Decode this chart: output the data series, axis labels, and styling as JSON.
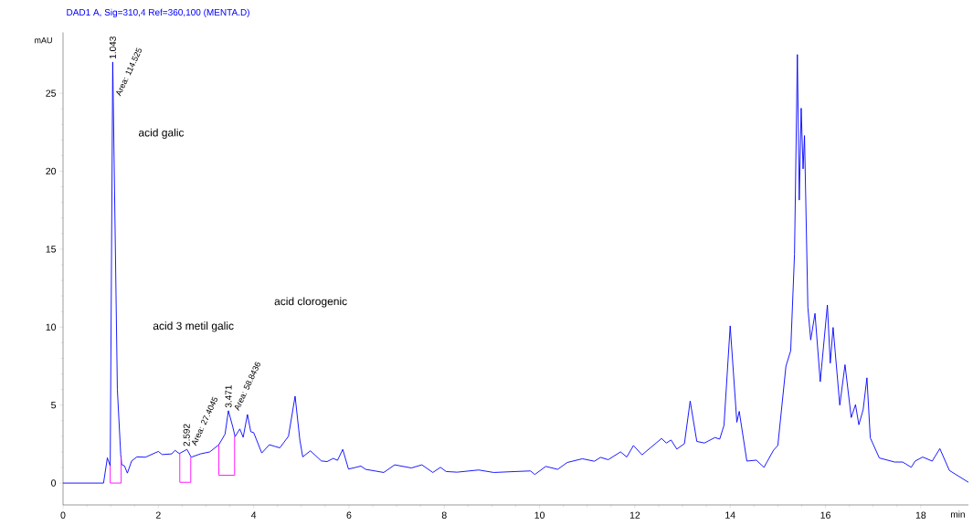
{
  "chart_data": {
    "type": "line",
    "title": "DAD1 A, Sig=310,4 Ref=360,100 (MENTA.D)",
    "xlabel": "min",
    "ylabel": "mAU",
    "xlim": [
      0,
      19.0
    ],
    "ylim": [
      -1.4,
      28.9
    ],
    "xticks": [
      0,
      2,
      4,
      6,
      8,
      10,
      12,
      14,
      16,
      18
    ],
    "yticks": [
      0,
      5,
      10,
      15,
      20,
      25
    ],
    "series": [
      {
        "color": "#0000ff",
        "x": [
          0,
          0.85,
          0.93,
          0.99,
          1.043,
          1.14,
          1.21,
          1.23,
          1.29,
          1.35,
          1.44,
          1.55,
          1.73,
          2.0,
          2.08,
          2.28,
          2.35,
          2.44,
          2.6,
          2.69,
          2.88,
          3.08,
          3.27,
          3.4,
          3.47,
          3.56,
          3.61,
          3.71,
          3.78,
          3.87,
          3.94,
          4.0,
          4.17,
          4.33,
          4.44,
          4.55,
          4.73,
          4.87,
          4.97,
          5.03,
          5.19,
          5.42,
          5.54,
          5.67,
          5.76,
          5.87,
          5.99,
          6.12,
          6.25,
          6.35,
          6.73,
          6.96,
          7.31,
          7.53,
          7.76,
          7.92,
          8.04,
          8.27,
          8.72,
          9.04,
          9.49,
          9.81,
          9.9,
          10.13,
          10.38,
          10.58,
          10.9,
          11.15,
          11.28,
          11.44,
          11.7,
          11.83,
          11.97,
          12.15,
          12.56,
          12.66,
          12.76,
          12.88,
          13.04,
          13.16,
          13.3,
          13.46,
          13.68,
          13.78,
          13.87,
          14.0,
          14.14,
          14.19,
          14.35,
          14.55,
          14.71,
          14.91,
          15.0,
          15.17,
          15.27,
          15.35,
          15.41,
          15.45,
          15.49,
          15.53,
          15.56,
          15.63,
          15.69,
          15.78,
          15.89,
          16.04,
          16.1,
          16.16,
          16.3,
          16.41,
          16.54,
          16.63,
          16.7,
          16.79,
          16.87,
          16.94,
          17.13,
          17.45,
          17.62,
          17.8,
          17.88,
          18.04,
          18.24,
          18.4,
          18.6,
          19.0
        ],
        "values": [
          0,
          0,
          1.62,
          1.1,
          27.0,
          6.0,
          1.85,
          1.19,
          1.1,
          0.64,
          1.42,
          1.68,
          1.66,
          2.03,
          1.83,
          1.87,
          2.1,
          1.89,
          2.16,
          1.66,
          1.87,
          2.0,
          2.46,
          3.14,
          4.64,
          3.63,
          2.98,
          3.47,
          2.94,
          4.4,
          3.29,
          3.24,
          1.93,
          2.46,
          2.36,
          2.26,
          3.0,
          5.57,
          2.75,
          1.68,
          2.07,
          1.42,
          1.38,
          1.58,
          1.46,
          2.16,
          0.9,
          0.99,
          1.09,
          0.88,
          0.68,
          1.17,
          0.97,
          1.17,
          0.68,
          1.01,
          0.74,
          0.7,
          0.84,
          0.68,
          0.74,
          0.78,
          0.55,
          1.07,
          0.88,
          1.32,
          1.56,
          1.4,
          1.65,
          1.5,
          2.0,
          1.67,
          2.41,
          1.81,
          2.86,
          2.57,
          2.76,
          2.18,
          2.53,
          5.26,
          2.67,
          2.57,
          2.92,
          2.82,
          3.7,
          10.08,
          3.9,
          4.6,
          1.41,
          1.47,
          1.01,
          2.11,
          2.41,
          7.49,
          8.49,
          14.67,
          27.48,
          18.15,
          24.04,
          20.15,
          22.28,
          11.28,
          9.18,
          10.88,
          6.5,
          11.42,
          7.69,
          9.98,
          5.0,
          7.59,
          4.2,
          5.03,
          3.74,
          4.7,
          6.75,
          2.9,
          1.61,
          1.35,
          1.35,
          1.01,
          1.41,
          1.67,
          1.41,
          2.21,
          0.81,
          0.05
        ]
      },
      {
        "color": "#ff00ff",
        "x": [
          0.99,
          0.99,
          1.22,
          1.22
        ],
        "values": [
          1.1,
          0,
          0,
          1.7
        ]
      },
      {
        "color": "#ff00ff",
        "x": [
          2.45,
          2.45,
          2.68,
          2.68
        ],
        "values": [
          1.9,
          0.05,
          0.05,
          1.66
        ]
      },
      {
        "color": "#ff00ff",
        "x": [
          3.27,
          3.27,
          3.6,
          3.6
        ],
        "values": [
          2.46,
          0.5,
          0.5,
          3.0
        ]
      }
    ],
    "annotations": [
      {
        "text": "1.043",
        "x": 1.043,
        "y": 27.0
      },
      "Area: 114.525",
      {
        "text": "2.592",
        "x": 2.592,
        "y": 2.16
      },
      {
        "text": "Area: 27.4045",
        "x": 2.592,
        "y": 2.16
      },
      {
        "text": "3.471",
        "x": 3.471,
        "y": 4.64
      },
      {
        "text": "Area: 58.8436",
        "x": 3.471,
        "y": 4.64
      },
      "acid galic",
      "acid 3 metil galic",
      "acid clorogenic"
    ]
  }
}
